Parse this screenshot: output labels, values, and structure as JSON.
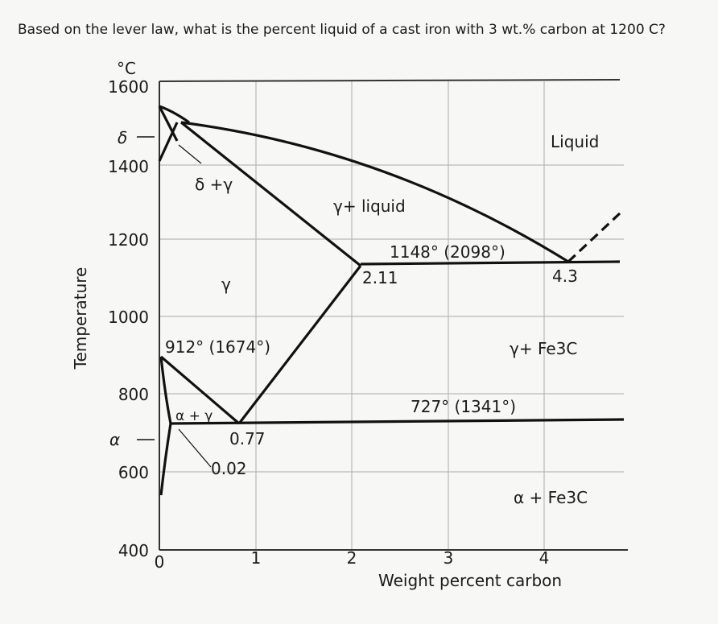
{
  "question": "Based on the lever law, what is the percent liquid of a cast iron with 3 wt.% carbon at 1200 C?",
  "diagram": {
    "y_unit": "°C",
    "y_title": "Temperature",
    "x_title": "Weight percent carbon",
    "y_ticks": [
      "1600",
      "1400",
      "1200",
      "1000",
      "800",
      "600",
      "400"
    ],
    "x_ticks": [
      "0",
      "1",
      "2",
      "3",
      "4"
    ],
    "side_symbols": [
      "δ",
      "α"
    ],
    "regions": [
      "Liquid",
      "δ +γ",
      "γ+ liquid",
      "γ",
      "γ+ Fe3C",
      "α + γ",
      "α + Fe3C"
    ],
    "points": [
      "1148° (2098°)",
      "2.11",
      "4.3",
      "912° (1674°)",
      "727° (1341°)",
      "0.77",
      "0.02"
    ]
  }
}
